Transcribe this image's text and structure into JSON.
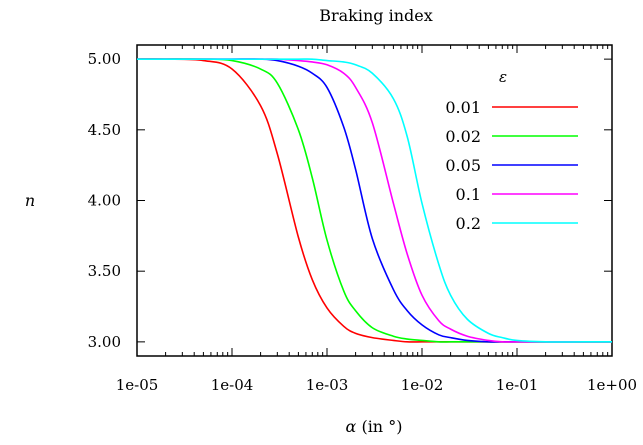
{
  "chart_data": {
    "type": "line",
    "title": "Braking index",
    "xlabel_symbol": "α",
    "xlabel_unit": " (in °)",
    "ylabel": "n",
    "x_scale": "log",
    "xlim": [
      1e-05,
      1
    ],
    "ylim": [
      2.9,
      5.1
    ],
    "x_ticks": [
      1e-05,
      0.0001,
      0.001,
      0.01,
      0.1,
      1
    ],
    "x_tick_labels": [
      "1e-05",
      "1e-04",
      "1e-03",
      "1e-02",
      "1e-01",
      "1e+00"
    ],
    "y_ticks": [
      3.0,
      3.5,
      4.0,
      4.5,
      5.0
    ],
    "y_tick_labels": [
      "3.00",
      "3.50",
      "4.00",
      "4.50",
      "5.00"
    ],
    "legend_title": "ε",
    "legend_position": "top-right",
    "grid": false,
    "x": [
      1e-05,
      2e-05,
      5e-05,
      0.0001,
      0.0002,
      0.0003,
      0.0005,
      0.0007,
      0.001,
      0.0015,
      0.002,
      0.003,
      0.005,
      0.007,
      0.01,
      0.015,
      0.02,
      0.03,
      0.05,
      0.07,
      0.1,
      0.2,
      0.5,
      1
    ],
    "series": [
      {
        "name": "0.01",
        "color": "#ff0000",
        "values": [
          5.0,
          5.0,
          4.99,
          4.93,
          4.67,
          4.33,
          3.74,
          3.44,
          3.24,
          3.11,
          3.06,
          3.03,
          3.01,
          3.0,
          3.0,
          3.0,
          3.0,
          3.0,
          3.0,
          3.0,
          3.0,
          3.0,
          3.0,
          3.0
        ]
      },
      {
        "name": "0.02",
        "color": "#00ff00",
        "values": [
          5.0,
          5.0,
          5.0,
          4.99,
          4.93,
          4.83,
          4.5,
          4.16,
          3.72,
          3.36,
          3.22,
          3.1,
          3.04,
          3.02,
          3.01,
          3.0,
          3.0,
          3.0,
          3.0,
          3.0,
          3.0,
          3.0,
          3.0,
          3.0
        ]
      },
      {
        "name": "0.05",
        "color": "#0000ff",
        "values": [
          5.0,
          5.0,
          5.0,
          5.0,
          5.0,
          4.99,
          4.95,
          4.9,
          4.8,
          4.52,
          4.22,
          3.73,
          3.37,
          3.22,
          3.12,
          3.05,
          3.03,
          3.01,
          3.0,
          3.0,
          3.0,
          3.0,
          3.0,
          3.0
        ]
      },
      {
        "name": "0.1",
        "color": "#ff00ff",
        "values": [
          5.0,
          5.0,
          5.0,
          5.0,
          5.0,
          5.0,
          4.99,
          4.98,
          4.96,
          4.9,
          4.8,
          4.55,
          3.98,
          3.62,
          3.33,
          3.15,
          3.09,
          3.04,
          3.01,
          3.0,
          3.0,
          3.0,
          3.0,
          3.0
        ]
      },
      {
        "name": "0.2",
        "color": "#00ffff",
        "values": [
          5.0,
          5.0,
          5.0,
          5.0,
          5.0,
          5.0,
          5.0,
          5.0,
          4.99,
          4.98,
          4.96,
          4.9,
          4.72,
          4.45,
          3.98,
          3.55,
          3.33,
          3.16,
          3.06,
          3.03,
          3.01,
          3.0,
          3.0,
          3.0
        ]
      }
    ]
  }
}
